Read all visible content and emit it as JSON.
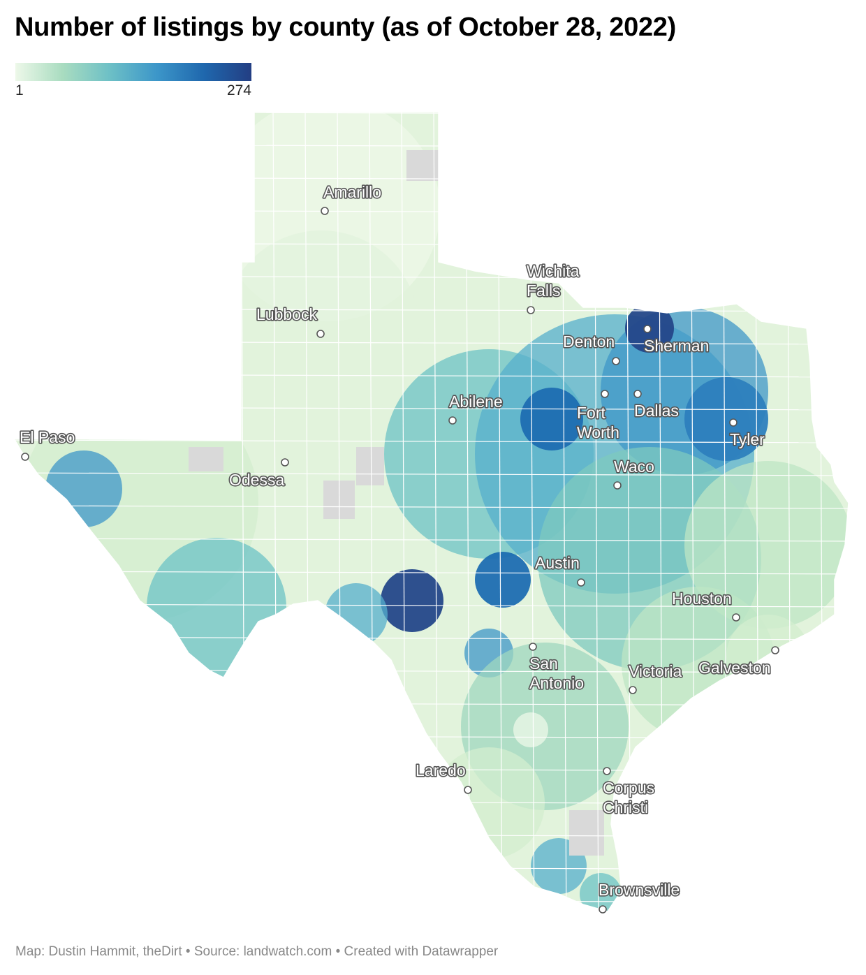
{
  "title": "Number of listings by county (as of October 28, 2022)",
  "legend": {
    "min": "1",
    "max": "274",
    "colors": [
      "#edf8e9",
      "#a9dcc0",
      "#6dc0c6",
      "#3c96c9",
      "#1f67ad",
      "#233e83"
    ]
  },
  "colors": {
    "no_data": "#d9d9d9",
    "low": "#eef8e8",
    "mid": "#6cc3c5",
    "high": "#1e6db1",
    "max": "#244789"
  },
  "cities": [
    {
      "name": "Amarillo",
      "lines": [
        "Amarillo"
      ]
    },
    {
      "name": "Wichita Falls",
      "lines": [
        "Wichita",
        "Falls"
      ]
    },
    {
      "name": "Lubbock",
      "lines": [
        "Lubbock"
      ]
    },
    {
      "name": "Denton",
      "lines": [
        "Denton"
      ]
    },
    {
      "name": "Sherman",
      "lines": [
        "Sherman"
      ]
    },
    {
      "name": "Abilene",
      "lines": [
        "Abilene"
      ]
    },
    {
      "name": "Fort Worth",
      "lines": [
        "Fort",
        "Worth"
      ]
    },
    {
      "name": "Dallas",
      "lines": [
        "Dallas"
      ]
    },
    {
      "name": "Tyler",
      "lines": [
        "Tyler"
      ]
    },
    {
      "name": "El Paso",
      "lines": [
        "El Paso"
      ]
    },
    {
      "name": "Odessa",
      "lines": [
        "Odessa"
      ]
    },
    {
      "name": "Waco",
      "lines": [
        "Waco"
      ]
    },
    {
      "name": "Austin",
      "lines": [
        "Austin"
      ]
    },
    {
      "name": "Houston",
      "lines": [
        "Houston"
      ]
    },
    {
      "name": "San Antonio",
      "lines": [
        "San",
        "Antonio"
      ]
    },
    {
      "name": "Victoria",
      "lines": [
        "Victoria"
      ]
    },
    {
      "name": "Galveston",
      "lines": [
        "Galveston"
      ]
    },
    {
      "name": "Laredo",
      "lines": [
        "Laredo"
      ]
    },
    {
      "name": "Corpus Christi",
      "lines": [
        "Corpus",
        "Christi"
      ]
    },
    {
      "name": "Brownsville",
      "lines": [
        "Brownsville"
      ]
    }
  ],
  "footer": "Map: Dustin Hammit, theDirt • Source: landwatch.com • Created with Datawrapper"
}
